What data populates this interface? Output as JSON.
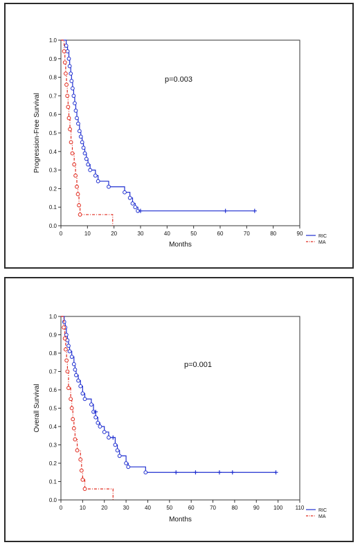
{
  "chart_data": [
    {
      "type": "line",
      "subtype": "kaplan-meier",
      "title": "",
      "xlabel": "Months",
      "ylabel": "Progression-Free Survival",
      "xlim": [
        0,
        90
      ],
      "ylim": [
        0,
        1.0
      ],
      "xticks": [
        "0",
        "10",
        "20",
        "30",
        "40",
        "50",
        "60",
        "70",
        "80",
        "90"
      ],
      "yticks": [
        "0.0",
        "0.1",
        "0.2",
        "0.3",
        "0.4",
        "0.5",
        "0.6",
        "0.7",
        "0.8",
        "0.9",
        "1.0"
      ],
      "annotation": "p=0.003",
      "legend_placement": "bottom-right",
      "grid": false,
      "series": [
        {
          "name": "RIC",
          "color": "#1f2fd0",
          "style": "solid",
          "marker": "circle",
          "censor_marker": "plus",
          "steps": [
            [
              0,
              1.0
            ],
            [
              2,
              0.97
            ],
            [
              2.5,
              0.94
            ],
            [
              3,
              0.9
            ],
            [
              3.3,
              0.86
            ],
            [
              3.7,
              0.82
            ],
            [
              4,
              0.78
            ],
            [
              4.4,
              0.74
            ],
            [
              4.8,
              0.7
            ],
            [
              5.2,
              0.66
            ],
            [
              5.6,
              0.62
            ],
            [
              6,
              0.58
            ],
            [
              6.5,
              0.55
            ],
            [
              7,
              0.51
            ],
            [
              7.5,
              0.48
            ],
            [
              8,
              0.45
            ],
            [
              8.5,
              0.42
            ],
            [
              9,
              0.39
            ],
            [
              9.6,
              0.36
            ],
            [
              10.2,
              0.33
            ],
            [
              11,
              0.3
            ],
            [
              13,
              0.27
            ],
            [
              14,
              0.24
            ],
            [
              18,
              0.21
            ],
            [
              24,
              0.18
            ],
            [
              26,
              0.15
            ],
            [
              27,
              0.12
            ],
            [
              28,
              0.1
            ],
            [
              29,
              0.08
            ],
            [
              73,
              0.08
            ]
          ],
          "event_points": [
            [
              2,
              0.97
            ],
            [
              2.5,
              0.94
            ],
            [
              3,
              0.9
            ],
            [
              3.3,
              0.86
            ],
            [
              3.7,
              0.82
            ],
            [
              4,
              0.78
            ],
            [
              4.4,
              0.74
            ],
            [
              4.8,
              0.7
            ],
            [
              5.2,
              0.66
            ],
            [
              5.6,
              0.62
            ],
            [
              6,
              0.58
            ],
            [
              6.5,
              0.55
            ],
            [
              7,
              0.51
            ],
            [
              7.5,
              0.48
            ],
            [
              8,
              0.45
            ],
            [
              8.5,
              0.42
            ],
            [
              9,
              0.39
            ],
            [
              9.6,
              0.36
            ],
            [
              10.2,
              0.33
            ],
            [
              11,
              0.3
            ],
            [
              13,
              0.27
            ],
            [
              14,
              0.24
            ],
            [
              18,
              0.21
            ],
            [
              24,
              0.18
            ],
            [
              26,
              0.15
            ],
            [
              27,
              0.12
            ],
            [
              28,
              0.1
            ],
            [
              29,
              0.08
            ]
          ],
          "censored": [
            [
              30,
              0.08
            ],
            [
              62,
              0.08
            ],
            [
              73,
              0.08
            ]
          ]
        },
        {
          "name": "MA",
          "color": "#e0281c",
          "style": "dashdot",
          "marker": "circle",
          "steps": [
            [
              0,
              1.0
            ],
            [
              1.2,
              0.94
            ],
            [
              1.5,
              0.88
            ],
            [
              1.8,
              0.82
            ],
            [
              2.1,
              0.76
            ],
            [
              2.4,
              0.7
            ],
            [
              2.7,
              0.64
            ],
            [
              3,
              0.58
            ],
            [
              3.4,
              0.52
            ],
            [
              3.8,
              0.45
            ],
            [
              4.3,
              0.39
            ],
            [
              5,
              0.33
            ],
            [
              5.5,
              0.27
            ],
            [
              6,
              0.21
            ],
            [
              6.4,
              0.17
            ],
            [
              6.8,
              0.11
            ],
            [
              7.2,
              0.06
            ],
            [
              19.5,
              0.06
            ],
            [
              19.5,
              0.0
            ]
          ],
          "event_points": [
            [
              1.2,
              0.94
            ],
            [
              1.5,
              0.88
            ],
            [
              1.8,
              0.82
            ],
            [
              2.1,
              0.76
            ],
            [
              2.4,
              0.7
            ],
            [
              2.7,
              0.64
            ],
            [
              3,
              0.58
            ],
            [
              3.4,
              0.52
            ],
            [
              3.8,
              0.45
            ],
            [
              4.3,
              0.39
            ],
            [
              5,
              0.33
            ],
            [
              5.5,
              0.27
            ],
            [
              6,
              0.21
            ],
            [
              6.4,
              0.17
            ],
            [
              6.8,
              0.11
            ],
            [
              7.2,
              0.06
            ]
          ],
          "censored": []
        }
      ]
    },
    {
      "type": "line",
      "subtype": "kaplan-meier",
      "title": "",
      "xlabel": "Months",
      "ylabel": "Overall Survival",
      "xlim": [
        0,
        110
      ],
      "ylim": [
        0,
        1.0
      ],
      "xticks": [
        "0",
        "10",
        "20",
        "30",
        "40",
        "50",
        "60",
        "70",
        "80",
        "90",
        "100",
        "110"
      ],
      "yticks": [
        "0.0",
        "0.1",
        "0.2",
        "0.3",
        "0.4",
        "0.5",
        "0.6",
        "0.7",
        "0.8",
        "0.9",
        "1.0"
      ],
      "annotation": "p=0.001",
      "legend_placement": "bottom-right",
      "grid": false,
      "series": [
        {
          "name": "RIC",
          "color": "#1f2fd0",
          "style": "solid",
          "marker": "circle",
          "censor_marker": "plus",
          "steps": [
            [
              0,
              1.0
            ],
            [
              1.5,
              0.97
            ],
            [
              2,
              0.94
            ],
            [
              2.5,
              0.9
            ],
            [
              3,
              0.87
            ],
            [
              3.5,
              0.84
            ],
            [
              4,
              0.81
            ],
            [
              5,
              0.78
            ],
            [
              6,
              0.74
            ],
            [
              6.5,
              0.71
            ],
            [
              7,
              0.68
            ],
            [
              8,
              0.65
            ],
            [
              9,
              0.62
            ],
            [
              10,
              0.58
            ],
            [
              11,
              0.55
            ],
            [
              14,
              0.52
            ],
            [
              15,
              0.48
            ],
            [
              16,
              0.45
            ],
            [
              17,
              0.42
            ],
            [
              18,
              0.4
            ],
            [
              20,
              0.37
            ],
            [
              22,
              0.34
            ],
            [
              25,
              0.3
            ],
            [
              26,
              0.27
            ],
            [
              27,
              0.24
            ],
            [
              30,
              0.2
            ],
            [
              31,
              0.18
            ],
            [
              39,
              0.15
            ],
            [
              99,
              0.15
            ]
          ],
          "event_points": [
            [
              1.5,
              0.97
            ],
            [
              2,
              0.94
            ],
            [
              2.5,
              0.9
            ],
            [
              3,
              0.87
            ],
            [
              3.5,
              0.84
            ],
            [
              4,
              0.81
            ],
            [
              5,
              0.78
            ],
            [
              6,
              0.74
            ],
            [
              6.5,
              0.71
            ],
            [
              7,
              0.68
            ],
            [
              8,
              0.65
            ],
            [
              9,
              0.62
            ],
            [
              10,
              0.58
            ],
            [
              11,
              0.55
            ],
            [
              14,
              0.52
            ],
            [
              15,
              0.48
            ],
            [
              16,
              0.45
            ],
            [
              17,
              0.42
            ],
            [
              18,
              0.4
            ],
            [
              20,
              0.37
            ],
            [
              22,
              0.34
            ],
            [
              25,
              0.3
            ],
            [
              26,
              0.27
            ],
            [
              27,
              0.24
            ],
            [
              30,
              0.2
            ],
            [
              31,
              0.18
            ],
            [
              39,
              0.15
            ]
          ],
          "censored": [
            [
              16,
              0.48
            ],
            [
              24,
              0.34
            ],
            [
              53,
              0.15
            ],
            [
              62,
              0.15
            ],
            [
              73,
              0.15
            ],
            [
              79,
              0.15
            ],
            [
              99,
              0.15
            ]
          ]
        },
        {
          "name": "MA",
          "color": "#e0281c",
          "style": "dashdot",
          "marker": "circle",
          "steps": [
            [
              0,
              1.0
            ],
            [
              1.3,
              0.94
            ],
            [
              1.8,
              0.88
            ],
            [
              2.2,
              0.82
            ],
            [
              2.6,
              0.76
            ],
            [
              3,
              0.7
            ],
            [
              3.5,
              0.61
            ],
            [
              4.5,
              0.55
            ],
            [
              5,
              0.5
            ],
            [
              5.5,
              0.44
            ],
            [
              6,
              0.39
            ],
            [
              6.5,
              0.33
            ],
            [
              7.5,
              0.27
            ],
            [
              9,
              0.22
            ],
            [
              9.5,
              0.16
            ],
            [
              10,
              0.11
            ],
            [
              11,
              0.06
            ],
            [
              24,
              0.06
            ],
            [
              24,
              0.0
            ]
          ],
          "event_points": [
            [
              1.3,
              0.94
            ],
            [
              1.8,
              0.88
            ],
            [
              2.2,
              0.82
            ],
            [
              2.6,
              0.76
            ],
            [
              3,
              0.7
            ],
            [
              3.5,
              0.61
            ],
            [
              4.5,
              0.55
            ],
            [
              5,
              0.5
            ],
            [
              5.5,
              0.44
            ],
            [
              6,
              0.39
            ],
            [
              6.5,
              0.33
            ],
            [
              7.5,
              0.27
            ],
            [
              9,
              0.22
            ],
            [
              9.5,
              0.16
            ],
            [
              10,
              0.11
            ],
            [
              11,
              0.06
            ]
          ],
          "censored": []
        }
      ]
    }
  ]
}
